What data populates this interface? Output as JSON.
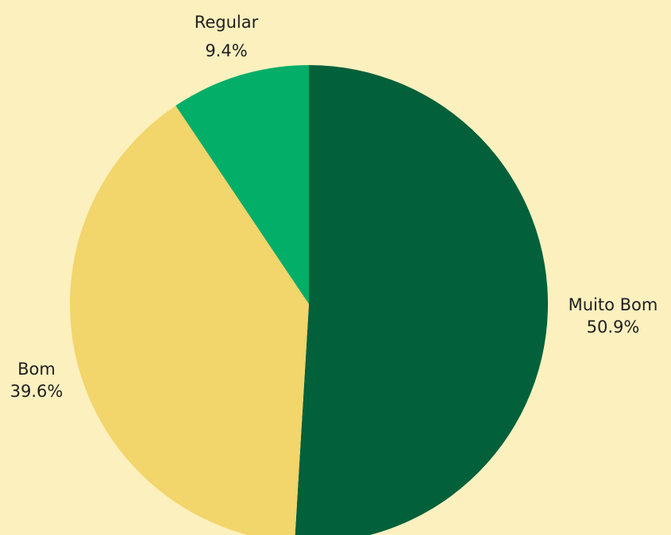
{
  "chart_data": {
    "type": "pie",
    "title": "",
    "start": "top",
    "direction": "clockwise",
    "slices": [
      {
        "label": "Muito Bom",
        "value": 50.9,
        "display": "50.9%",
        "color": "#02603a"
      },
      {
        "label": "Bom",
        "value": 39.6,
        "display": "39.6%",
        "color": "#f2d56b"
      },
      {
        "label": "Regular",
        "value": 9.4,
        "display": "9.4%",
        "color": "#02ae68"
      }
    ]
  },
  "colors": {
    "background": "#fdf0bf",
    "text": "#1f1f1f"
  }
}
